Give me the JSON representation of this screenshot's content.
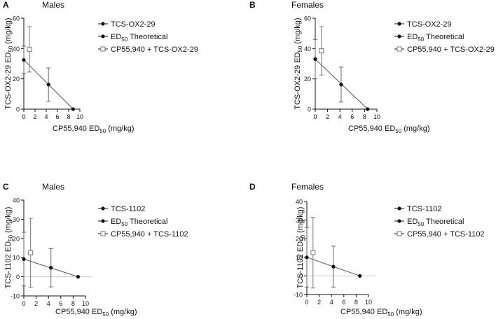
{
  "colors": {
    "ink": "#111111",
    "line": "#555555",
    "error": "#666666",
    "combo": "#777777",
    "zero_line": "#cccccc"
  },
  "chart_data": [
    {
      "id": "A",
      "type": "scatter",
      "panel_letter": "A",
      "title": "Males",
      "xlabel_main": "CP55,940 ED",
      "xlabel_sub": "50",
      "xlabel_tail": " (mg/kg)",
      "ylabel_main": "TCS-OX2-29 ED",
      "ylabel_sub": "50",
      "ylabel_tail": " (mg/kg)",
      "xlim": [
        0,
        10
      ],
      "ylim": [
        0,
        60
      ],
      "xticks": [
        "0",
        "2",
        "4",
        "6",
        "8",
        "10"
      ],
      "yticks": [
        "0",
        "20",
        "40",
        "60"
      ],
      "show_zero_line": false,
      "points": [
        {
          "x": 0,
          "y": 32.5,
          "err": 9
        },
        {
          "x": 4.4,
          "y": 16.2,
          "err": 11
        },
        {
          "x": 8.8,
          "y": 0,
          "err": 0
        }
      ],
      "combo": {
        "x": 1.0,
        "y": 39.5,
        "xerr": 0.4,
        "yerr": 15
      },
      "legend": [
        {
          "label": "TCS-OX2-29",
          "sub": "",
          "tail": "",
          "marker": "dot"
        },
        {
          "label": "ED",
          "sub": "50",
          "tail": " Theoretical",
          "marker": "dot"
        },
        {
          "label": "CP55,940 + TCS-OX2-29",
          "sub": "",
          "tail": "",
          "marker": "square"
        }
      ]
    },
    {
      "id": "B",
      "type": "scatter",
      "panel_letter": "B",
      "title": "Females",
      "xlabel_main": "CP55,940 ED",
      "xlabel_sub": "50",
      "xlabel_tail": " (mg/kg)",
      "ylabel_main": "TCS-OX2-29 ED",
      "ylabel_sub": "50",
      "ylabel_tail": " (mg/kg)",
      "xlim": [
        0,
        10
      ],
      "ylim": [
        0,
        60
      ],
      "xticks": [
        "0",
        "2",
        "4",
        "6",
        "8",
        "10"
      ],
      "yticks": [
        "0",
        "20",
        "40",
        "60"
      ],
      "show_zero_line": false,
      "points": [
        {
          "x": 0,
          "y": 33,
          "err": 13
        },
        {
          "x": 4.2,
          "y": 16.2,
          "err": 11.5
        },
        {
          "x": 8.5,
          "y": 0,
          "err": 0
        }
      ],
      "combo": {
        "x": 1.0,
        "y": 38.5,
        "xerr": 0.3,
        "yerr": 16
      },
      "legend": [
        {
          "label": "TCS-OX2-29",
          "sub": "",
          "tail": "",
          "marker": "dot"
        },
        {
          "label": "ED",
          "sub": "50",
          "tail": " Theoretical",
          "marker": "dot"
        },
        {
          "label": "CP55,940 + TCS-OX2-29",
          "sub": "",
          "tail": "",
          "marker": "square"
        }
      ]
    },
    {
      "id": "C",
      "type": "scatter",
      "panel_letter": "C",
      "title": "Males",
      "xlabel_main": "CP55,940 ED",
      "xlabel_sub": "50",
      "xlabel_tail": " (mg/kg)",
      "ylabel_main": "TCS-1102 ED",
      "ylabel_sub": "50",
      "ylabel_tail": " (mg/kg)",
      "xlim": [
        0,
        10
      ],
      "ylim": [
        -10,
        40
      ],
      "xticks": [
        "0",
        "2",
        "4",
        "6",
        "8",
        "10"
      ],
      "yticks": [
        "-10",
        "0",
        "10",
        "20",
        "30",
        "40"
      ],
      "show_zero_line": true,
      "points": [
        {
          "x": 0,
          "y": 9.2,
          "err": 14
        },
        {
          "x": 4.4,
          "y": 4.7,
          "err": 10
        },
        {
          "x": 8.8,
          "y": 0,
          "err": 0
        }
      ],
      "combo": {
        "x": 1.1,
        "y": 12.5,
        "xerr": 0.4,
        "yerr": 18
      },
      "legend": [
        {
          "label": "TCS-1102",
          "sub": "",
          "tail": "",
          "marker": "dot"
        },
        {
          "label": "ED",
          "sub": "50",
          "tail": " Theoretical",
          "marker": "dot"
        },
        {
          "label": "CP55,940 + TCS-1102",
          "sub": "",
          "tail": "",
          "marker": "square"
        }
      ]
    },
    {
      "id": "D",
      "type": "scatter",
      "panel_letter": "D",
      "title": "Females",
      "xlabel_main": "CP55,940 ED",
      "xlabel_sub": "50",
      "xlabel_tail": " (mg/kg)",
      "ylabel_main": "TCS-1102 ED",
      "ylabel_sub": "50",
      "ylabel_tail": " (mg/kg)",
      "xlim": [
        0,
        10
      ],
      "ylim": [
        -10,
        40
      ],
      "xticks": [
        "0",
        "2",
        "4",
        "6",
        "8",
        "10"
      ],
      "yticks": [
        "-10",
        "0",
        "10",
        "20",
        "30",
        "40"
      ],
      "show_zero_line": true,
      "points": [
        {
          "x": 0,
          "y": 10,
          "err": 16
        },
        {
          "x": 4.3,
          "y": 5,
          "err": 11
        },
        {
          "x": 8.6,
          "y": 0,
          "err": 0
        }
      ],
      "combo": {
        "x": 1.0,
        "y": 12.5,
        "xerr": 0.3,
        "yerr": 19
      },
      "legend": [
        {
          "label": "TCS-1102",
          "sub": "",
          "tail": "",
          "marker": "dot"
        },
        {
          "label": "ED",
          "sub": "50",
          "tail": " Theoretical",
          "marker": "dot"
        },
        {
          "label": "CP55,940 + TCS-1102",
          "sub": "",
          "tail": "",
          "marker": "square"
        }
      ]
    }
  ]
}
